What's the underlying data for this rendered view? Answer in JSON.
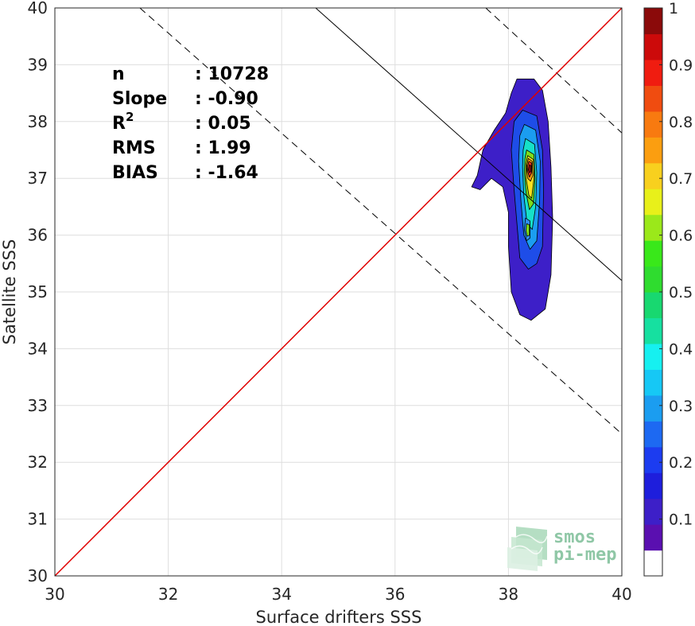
{
  "chart_data": {
    "type": "heatmap",
    "subtype": "density-contour-scatter",
    "xlabel": "Surface drifters SSS",
    "ylabel": "Satellite SSS",
    "xlim": [
      30,
      40
    ],
    "ylim": [
      30,
      40
    ],
    "xticks": [
      "30",
      "32",
      "34",
      "36",
      "38",
      "40"
    ],
    "yticks": [
      "30",
      "31",
      "32",
      "33",
      "34",
      "35",
      "36",
      "37",
      "38",
      "39",
      "40"
    ],
    "grid": true,
    "stats": [
      {
        "label": "n",
        "sep": ":",
        "value": "10728"
      },
      {
        "label": "Slope",
        "sep": ":",
        "value": "-0.90"
      },
      {
        "label": "R",
        "sup": "2",
        "sep": ":",
        "value": "0.05"
      },
      {
        "label": "RMS",
        "sep": ":",
        "value": "1.99"
      },
      {
        "label": "BIAS",
        "sep": ":",
        "value": "-1.64"
      }
    ],
    "lines": {
      "identity": {
        "from": [
          30,
          30
        ],
        "to": [
          40,
          40
        ],
        "color": "#e00000"
      },
      "regression": {
        "slope": -0.9,
        "from": [
          34.6,
          40
        ],
        "to": [
          40,
          35.2
        ],
        "color": "#000000"
      },
      "regression_bounds": [
        {
          "from": [
            31.5,
            40
          ],
          "to": [
            40,
            32.5
          ],
          "style": "dashed"
        },
        {
          "from": [
            37.6,
            40
          ],
          "to": [
            40,
            37.8
          ],
          "style": "dashed"
        }
      ]
    },
    "density_levels": [
      {
        "level": 0.05,
        "color": "#3d1fc8",
        "polygon": [
          [
            38.15,
            38.75
          ],
          [
            38.45,
            38.75
          ],
          [
            38.6,
            38.55
          ],
          [
            38.7,
            38.0
          ],
          [
            38.75,
            37.2
          ],
          [
            38.78,
            36.3
          ],
          [
            38.75,
            35.3
          ],
          [
            38.65,
            34.7
          ],
          [
            38.4,
            34.5
          ],
          [
            38.2,
            34.6
          ],
          [
            38.05,
            35.0
          ],
          [
            38.0,
            35.8
          ],
          [
            38.0,
            36.4
          ],
          [
            37.9,
            36.85
          ],
          [
            37.7,
            37.0
          ],
          [
            37.5,
            36.8
          ],
          [
            37.35,
            36.85
          ],
          [
            37.45,
            37.05
          ],
          [
            37.55,
            37.5
          ],
          [
            37.75,
            37.85
          ],
          [
            37.95,
            38.15
          ],
          [
            38.05,
            38.5
          ]
        ]
      },
      {
        "level": 0.15,
        "color": "#1e4de8",
        "polygon": [
          [
            38.25,
            38.2
          ],
          [
            38.5,
            38.1
          ],
          [
            38.6,
            37.5
          ],
          [
            38.62,
            36.8
          ],
          [
            38.6,
            35.8
          ],
          [
            38.5,
            35.5
          ],
          [
            38.35,
            35.4
          ],
          [
            38.2,
            35.6
          ],
          [
            38.15,
            36.2
          ],
          [
            38.1,
            36.8
          ],
          [
            38.05,
            37.5
          ],
          [
            38.1,
            38.0
          ]
        ]
      },
      {
        "level": 0.3,
        "color": "#1b9df0",
        "polygon": [
          [
            38.28,
            37.95
          ],
          [
            38.48,
            37.85
          ],
          [
            38.56,
            37.3
          ],
          [
            38.55,
            36.6
          ],
          [
            38.5,
            35.9
          ],
          [
            38.38,
            35.75
          ],
          [
            38.27,
            36.0
          ],
          [
            38.22,
            36.6
          ],
          [
            38.18,
            37.3
          ],
          [
            38.2,
            37.75
          ]
        ]
      },
      {
        "level": 0.4,
        "color": "#16e0c8",
        "polygon": [
          [
            38.3,
            37.7
          ],
          [
            38.46,
            37.6
          ],
          [
            38.5,
            37.1
          ],
          [
            38.48,
            36.5
          ],
          [
            38.42,
            36.1
          ],
          [
            38.33,
            36.2
          ],
          [
            38.27,
            36.7
          ],
          [
            38.25,
            37.2
          ],
          [
            38.26,
            37.5
          ]
        ]
      },
      {
        "level": 0.55,
        "color": "#7fdc1a",
        "polygon": [
          [
            38.32,
            37.5
          ],
          [
            38.45,
            37.42
          ],
          [
            38.47,
            37.0
          ],
          [
            38.44,
            36.55
          ],
          [
            38.37,
            36.45
          ],
          [
            38.31,
            36.75
          ],
          [
            38.28,
            37.1
          ],
          [
            38.29,
            37.35
          ]
        ]
      },
      {
        "level": 0.65,
        "color": "#f8e11e",
        "polygon": [
          [
            38.34,
            37.4
          ],
          [
            38.44,
            37.33
          ],
          [
            38.45,
            37.0
          ],
          [
            38.41,
            36.65
          ],
          [
            38.36,
            36.7
          ],
          [
            38.31,
            37.0
          ],
          [
            38.31,
            37.25
          ]
        ]
      },
      {
        "level": 0.75,
        "color": "#fb9e10",
        "polygon": [
          [
            38.35,
            37.35
          ],
          [
            38.42,
            37.3
          ],
          [
            38.43,
            37.05
          ],
          [
            38.39,
            36.95
          ],
          [
            38.34,
            37.0
          ],
          [
            38.32,
            37.2
          ]
        ]
      },
      {
        "level": 0.85,
        "color": "#e8331a",
        "polygon": [
          [
            38.36,
            37.3
          ],
          [
            38.41,
            37.27
          ],
          [
            38.41,
            37.1
          ],
          [
            38.37,
            37.02
          ],
          [
            38.34,
            37.12
          ],
          [
            38.34,
            37.22
          ]
        ]
      },
      {
        "level": 0.95,
        "color": "#8b0a0a",
        "polygon": [
          [
            38.37,
            37.24
          ],
          [
            38.4,
            37.22
          ],
          [
            38.4,
            37.12
          ],
          [
            38.37,
            37.1
          ],
          [
            38.35,
            37.15
          ]
        ]
      },
      {
        "level": 0.3,
        "color": "#2f8ef5",
        "polygon": [
          [
            38.3,
            36.3
          ],
          [
            38.38,
            36.25
          ],
          [
            38.38,
            35.95
          ],
          [
            38.32,
            35.9
          ],
          [
            38.28,
            36.1
          ]
        ]
      },
      {
        "level": 0.55,
        "color": "#7fdc1a",
        "polygon": [
          [
            38.32,
            36.2
          ],
          [
            38.37,
            36.18
          ],
          [
            38.37,
            36.0
          ],
          [
            38.33,
            35.98
          ],
          [
            38.31,
            36.08
          ]
        ]
      }
    ],
    "colorbar": {
      "ticks": [
        "0.1",
        "0.2",
        "0.3",
        "0.4",
        "0.5",
        "0.6",
        "0.7",
        "0.8",
        "0.9",
        "1"
      ],
      "range": [
        0,
        1
      ],
      "colors": [
        "#ffffff",
        "#5a0fb0",
        "#3d1fc8",
        "#1e1edc",
        "#1c3cf0",
        "#1d69f2",
        "#1b9df0",
        "#16c8f5",
        "#16f0f0",
        "#16e0a0",
        "#18d870",
        "#2fdc2f",
        "#39e81a",
        "#9be81a",
        "#e8f01a",
        "#f8d01e",
        "#fb9e10",
        "#f87a10",
        "#f04c10",
        "#f01c10",
        "#cc0a0a",
        "#8b0a0a"
      ]
    }
  },
  "watermark": {
    "line1": "smos",
    "line2": "pi-mep"
  }
}
